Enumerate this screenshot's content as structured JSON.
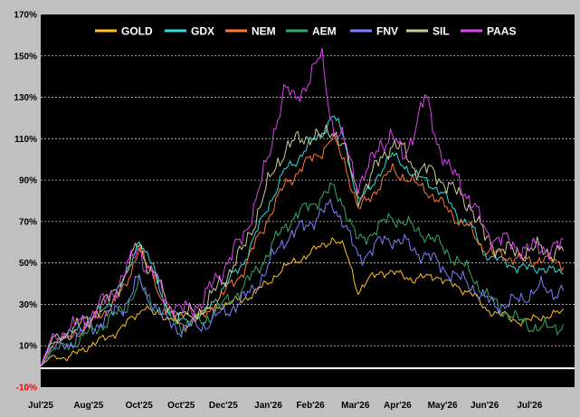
{
  "chart_data": {
    "type": "line",
    "title": "",
    "xlabel": "",
    "ylabel": "",
    "ylim": [
      -10,
      170
    ],
    "y_ticks": [
      -10,
      10,
      30,
      50,
      70,
      90,
      110,
      130,
      150,
      170
    ],
    "y_tick_labels": [
      "-10%",
      "10%",
      "30%",
      "50%",
      "70%",
      "90%",
      "110%",
      "130%",
      "150%",
      "170%"
    ],
    "x_tick_labels": [
      "Jul'25",
      "Aug'25",
      "Oct'25",
      "Oct'25",
      "Dec'25",
      "Jan'26",
      "Feb'26",
      "Mar'26",
      "Apr'26",
      "May'26",
      "Jun'26",
      "Jul'26"
    ],
    "x_tick_positions": [
      0,
      17,
      35,
      50,
      65,
      81,
      96,
      112,
      127,
      143,
      158,
      174
    ],
    "x_domain": [
      0,
      190
    ],
    "grid": "horizontal-dashed",
    "zero_line": true,
    "background": "#000000",
    "legend_position": "top",
    "keypoints": [
      0,
      4,
      10,
      17,
      24,
      30,
      35,
      37,
      40,
      45,
      50,
      58,
      65,
      72,
      76,
      81,
      84,
      87,
      90,
      96,
      100,
      104,
      108,
      110,
      113,
      117,
      121,
      125,
      129,
      133,
      137,
      141,
      145,
      149,
      153,
      158,
      162,
      166,
      170,
      174,
      178,
      182,
      186
    ],
    "series": [
      {
        "name": "GOLD",
        "color": "#ffc020",
        "key": [
          0,
          5,
          4,
          10,
          14,
          20,
          26,
          30,
          25,
          24,
          24,
          26,
          30,
          32,
          36,
          40,
          45,
          48,
          50,
          55,
          58,
          62,
          57,
          50,
          36,
          42,
          46,
          45,
          44,
          42,
          43,
          44,
          40,
          38,
          36,
          28,
          26,
          24,
          22,
          22,
          24,
          25,
          26
        ]
      },
      {
        "name": "GDX",
        "color": "#33dddd",
        "key": [
          0,
          12,
          15,
          22,
          30,
          42,
          62,
          55,
          48,
          28,
          22,
          25,
          38,
          50,
          62,
          78,
          86,
          95,
          98,
          108,
          112,
          122,
          110,
          98,
          80,
          85,
          95,
          102,
          98,
          92,
          90,
          86,
          80,
          72,
          68,
          55,
          52,
          50,
          48,
          47,
          48,
          46,
          45
        ]
      },
      {
        "name": "NEM",
        "color": "#ff7733",
        "key": [
          0,
          11,
          14,
          20,
          28,
          38,
          58,
          50,
          44,
          26,
          20,
          24,
          35,
          46,
          58,
          72,
          80,
          88,
          92,
          100,
          104,
          110,
          100,
          90,
          75,
          82,
          88,
          95,
          92,
          88,
          86,
          80,
          76,
          70,
          66,
          56,
          54,
          53,
          52,
          51,
          52,
          51,
          50
        ]
      },
      {
        "name": "AEM",
        "color": "#33aa66",
        "key": [
          0,
          8,
          10,
          16,
          22,
          28,
          40,
          35,
          30,
          24,
          20,
          22,
          30,
          38,
          45,
          55,
          62,
          68,
          72,
          78,
          82,
          86,
          78,
          70,
          60,
          64,
          68,
          72,
          70,
          66,
          64,
          60,
          55,
          50,
          45,
          35,
          30,
          26,
          22,
          20,
          18,
          19,
          20
        ]
      },
      {
        "name": "FNV",
        "color": "#8080ff",
        "key": [
          0,
          9,
          11,
          18,
          24,
          30,
          42,
          36,
          30,
          22,
          18,
          20,
          26,
          32,
          38,
          48,
          56,
          62,
          64,
          70,
          74,
          78,
          70,
          62,
          52,
          56,
          60,
          62,
          60,
          56,
          54,
          50,
          46,
          42,
          40,
          32,
          30,
          30,
          32,
          35,
          38,
          36,
          37
        ]
      },
      {
        "name": "SIL",
        "color": "#cccc99",
        "key": [
          0,
          13,
          16,
          23,
          32,
          44,
          60,
          52,
          46,
          30,
          24,
          28,
          42,
          56,
          70,
          88,
          98,
          105,
          108,
          112,
          110,
          115,
          106,
          95,
          82,
          90,
          100,
          108,
          104,
          96,
          95,
          92,
          88,
          82,
          78,
          62,
          58,
          56,
          55,
          56,
          57,
          55,
          56
        ]
      },
      {
        "name": "PAAS",
        "color": "#dd44ee",
        "key": [
          0,
          14,
          17,
          24,
          33,
          45,
          58,
          50,
          44,
          32,
          26,
          32,
          48,
          62,
          78,
          100,
          120,
          135,
          128,
          140,
          150,
          115,
          108,
          100,
          88,
          96,
          108,
          112,
          100,
          115,
          130,
          110,
          95,
          90,
          80,
          66,
          62,
          60,
          58,
          56,
          58,
          57,
          58
        ]
      }
    ]
  }
}
